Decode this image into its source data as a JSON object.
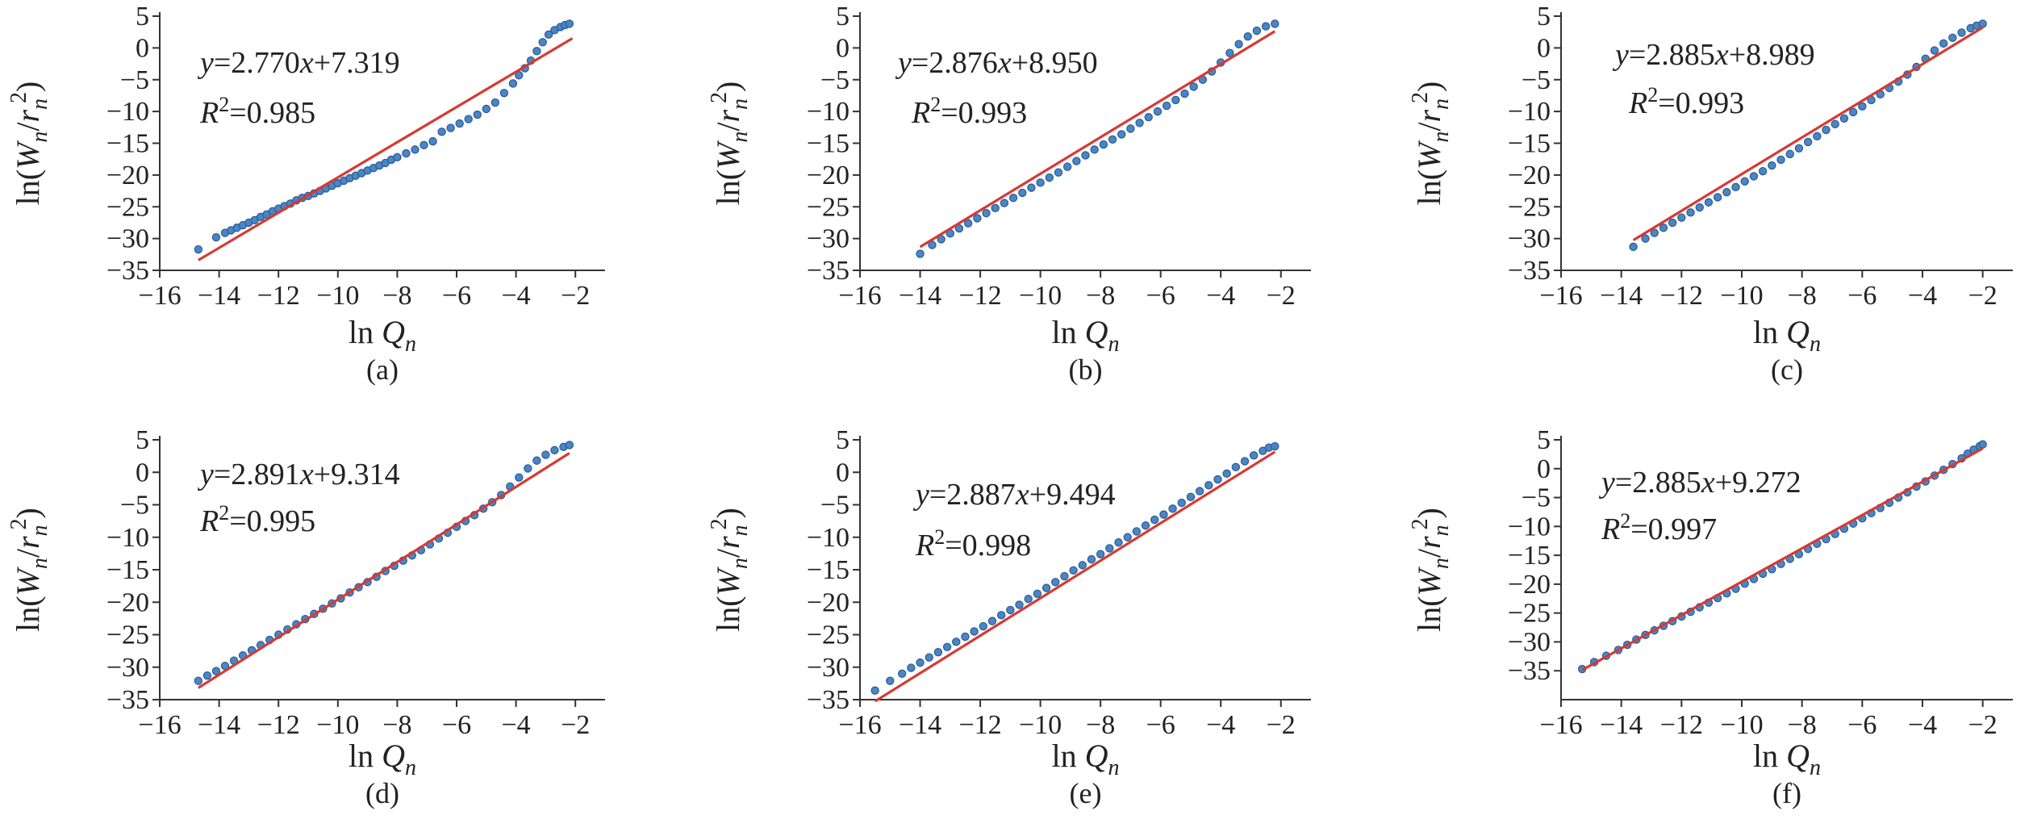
{
  "figure": {
    "marker_color": "#4a86c5",
    "marker_edge": "#2a5b93",
    "fit_color": "#d63a33",
    "axis_color": "#333333"
  },
  "chart_data": [
    {
      "type": "scatter",
      "label": "(a)",
      "xlabel": "ln Q_n",
      "ylabel": "ln(W_n/r_n^2)",
      "xlim": [
        -16,
        -1
      ],
      "ylim": [
        -35,
        5
      ],
      "xticks": [
        -16,
        -14,
        -12,
        -10,
        -8,
        -6,
        -4,
        -2
      ],
      "yticks": [
        5,
        0,
        -5,
        -10,
        -15,
        -20,
        -25,
        -30,
        -35
      ],
      "equation": {
        "slope": "2.770",
        "intercept": "7.319",
        "r2": "0.985"
      },
      "fit": {
        "slope": 2.77,
        "intercept": 7.319,
        "x_range": [
          -14.7,
          -2.1
        ]
      },
      "points": [
        [
          -14.7,
          -31.7
        ],
        [
          -14.1,
          -29.8
        ],
        [
          -13.8,
          -29.1
        ],
        [
          -13.6,
          -28.7
        ],
        [
          -13.4,
          -28.3
        ],
        [
          -13.2,
          -27.9
        ],
        [
          -13.0,
          -27.5
        ],
        [
          -12.8,
          -27.1
        ],
        [
          -12.6,
          -26.6
        ],
        [
          -12.4,
          -26.2
        ],
        [
          -12.2,
          -25.7
        ],
        [
          -12.0,
          -25.3
        ],
        [
          -11.8,
          -24.9
        ],
        [
          -11.6,
          -24.5
        ],
        [
          -11.4,
          -24.0
        ],
        [
          -11.2,
          -23.6
        ],
        [
          -11.0,
          -23.3
        ],
        [
          -10.8,
          -22.9
        ],
        [
          -10.6,
          -22.5
        ],
        [
          -10.4,
          -22.1
        ],
        [
          -10.2,
          -21.7
        ],
        [
          -10.0,
          -21.3
        ],
        [
          -9.8,
          -20.9
        ],
        [
          -9.6,
          -20.5
        ],
        [
          -9.4,
          -20.1
        ],
        [
          -9.2,
          -19.7
        ],
        [
          -9.0,
          -19.3
        ],
        [
          -8.8,
          -18.9
        ],
        [
          -8.6,
          -18.5
        ],
        [
          -8.4,
          -18.1
        ],
        [
          -8.2,
          -17.6
        ],
        [
          -8.0,
          -17.2
        ],
        [
          -7.7,
          -16.6
        ],
        [
          -7.4,
          -16.0
        ],
        [
          -7.1,
          -15.3
        ],
        [
          -6.8,
          -14.7
        ],
        [
          -6.5,
          -13.2
        ],
        [
          -6.2,
          -12.6
        ],
        [
          -5.9,
          -11.9
        ],
        [
          -5.6,
          -11.2
        ],
        [
          -5.3,
          -10.5
        ],
        [
          -5.0,
          -9.6
        ],
        [
          -4.7,
          -8.6
        ],
        [
          -4.4,
          -7.1
        ],
        [
          -4.1,
          -5.6
        ],
        [
          -3.9,
          -4.3
        ],
        [
          -3.7,
          -3.2
        ],
        [
          -3.5,
          -2.0
        ],
        [
          -3.3,
          -0.5
        ],
        [
          -3.1,
          0.9
        ],
        [
          -2.9,
          2.1
        ],
        [
          -2.7,
          2.8
        ],
        [
          -2.5,
          3.3
        ],
        [
          -2.35,
          3.6
        ],
        [
          -2.2,
          3.8
        ]
      ]
    },
    {
      "type": "scatter",
      "label": "(b)",
      "xlabel": "ln Q_n",
      "ylabel": "ln(W_n/r_n^2)",
      "xlim": [
        -16,
        -1
      ],
      "ylim": [
        -35,
        5
      ],
      "xticks": [
        -16,
        -14,
        -12,
        -10,
        -8,
        -6,
        -4,
        -2
      ],
      "yticks": [
        5,
        0,
        -5,
        -10,
        -15,
        -20,
        -25,
        -30,
        -35
      ],
      "equation": {
        "slope": "2.876",
        "intercept": "8.950",
        "r2": "0.993"
      },
      "fit": {
        "slope": 2.876,
        "intercept": 8.95,
        "x_range": [
          -14.0,
          -2.2
        ]
      },
      "points": [
        [
          -14.0,
          -32.4
        ],
        [
          -13.6,
          -31.0
        ],
        [
          -13.3,
          -30.1
        ],
        [
          -13.0,
          -29.2
        ],
        [
          -12.7,
          -28.4
        ],
        [
          -12.4,
          -27.6
        ],
        [
          -12.1,
          -26.8
        ],
        [
          -11.8,
          -26.0
        ],
        [
          -11.5,
          -25.2
        ],
        [
          -11.2,
          -24.4
        ],
        [
          -10.9,
          -23.6
        ],
        [
          -10.6,
          -22.8
        ],
        [
          -10.3,
          -22.0
        ],
        [
          -10.0,
          -21.2
        ],
        [
          -9.7,
          -20.4
        ],
        [
          -9.4,
          -19.6
        ],
        [
          -9.1,
          -18.7
        ],
        [
          -8.8,
          -17.8
        ],
        [
          -8.5,
          -16.9
        ],
        [
          -8.2,
          -16.0
        ],
        [
          -7.9,
          -15.2
        ],
        [
          -7.6,
          -14.4
        ],
        [
          -7.3,
          -13.6
        ],
        [
          -7.0,
          -12.7
        ],
        [
          -6.7,
          -11.8
        ],
        [
          -6.4,
          -10.9
        ],
        [
          -6.1,
          -10.0
        ],
        [
          -5.8,
          -9.1
        ],
        [
          -5.5,
          -8.2
        ],
        [
          -5.2,
          -7.2
        ],
        [
          -4.9,
          -6.1
        ],
        [
          -4.6,
          -5.0
        ],
        [
          -4.3,
          -3.7
        ],
        [
          -4.0,
          -2.3
        ],
        [
          -3.7,
          -0.8
        ],
        [
          -3.4,
          0.6
        ],
        [
          -3.1,
          1.8
        ],
        [
          -2.8,
          2.7
        ],
        [
          -2.5,
          3.4
        ],
        [
          -2.2,
          3.8
        ]
      ]
    },
    {
      "type": "scatter",
      "label": "(c)",
      "xlabel": "ln Q_n",
      "ylabel": "ln(W_n/r_n^2)",
      "xlim": [
        -16,
        -1
      ],
      "ylim": [
        -35,
        5
      ],
      "xticks": [
        -16,
        -14,
        -12,
        -10,
        -8,
        -6,
        -4,
        -2
      ],
      "yticks": [
        5,
        0,
        -5,
        -10,
        -15,
        -20,
        -25,
        -30,
        -35
      ],
      "equation": {
        "slope": "2.885",
        "intercept": "8.989",
        "r2": "0.993"
      },
      "fit": {
        "slope": 2.885,
        "intercept": 8.989,
        "x_range": [
          -13.6,
          -2.0
        ]
      },
      "points": [
        [
          -13.6,
          -31.3
        ],
        [
          -13.2,
          -30.0
        ],
        [
          -12.9,
          -29.1
        ],
        [
          -12.6,
          -28.3
        ],
        [
          -12.3,
          -27.5
        ],
        [
          -12.0,
          -26.7
        ],
        [
          -11.7,
          -25.9
        ],
        [
          -11.4,
          -25.1
        ],
        [
          -11.1,
          -24.3
        ],
        [
          -10.8,
          -23.5
        ],
        [
          -10.5,
          -22.7
        ],
        [
          -10.2,
          -21.9
        ],
        [
          -9.9,
          -21.0
        ],
        [
          -9.6,
          -20.2
        ],
        [
          -9.3,
          -19.4
        ],
        [
          -9.0,
          -18.5
        ],
        [
          -8.7,
          -17.6
        ],
        [
          -8.4,
          -16.7
        ],
        [
          -8.1,
          -15.8
        ],
        [
          -7.8,
          -14.8
        ],
        [
          -7.5,
          -13.9
        ],
        [
          -7.2,
          -12.9
        ],
        [
          -6.9,
          -12.0
        ],
        [
          -6.6,
          -11.1
        ],
        [
          -6.3,
          -10.1
        ],
        [
          -6.0,
          -9.2
        ],
        [
          -5.7,
          -8.2
        ],
        [
          -5.4,
          -7.3
        ],
        [
          -5.1,
          -6.3
        ],
        [
          -4.8,
          -5.3
        ],
        [
          -4.5,
          -4.2
        ],
        [
          -4.2,
          -3.0
        ],
        [
          -3.9,
          -1.7
        ],
        [
          -3.6,
          -0.4
        ],
        [
          -3.3,
          0.7
        ],
        [
          -3.0,
          1.6
        ],
        [
          -2.7,
          2.4
        ],
        [
          -2.4,
          3.1
        ],
        [
          -2.2,
          3.5
        ],
        [
          -2.0,
          3.8
        ]
      ]
    },
    {
      "type": "scatter",
      "label": "(d)",
      "xlabel": "ln Q_n",
      "ylabel": "ln(W_n/r_n^2)",
      "xlim": [
        -16,
        -1
      ],
      "ylim": [
        -35,
        5
      ],
      "xticks": [
        -16,
        -14,
        -12,
        -10,
        -8,
        -6,
        -4,
        -2
      ],
      "yticks": [
        5,
        0,
        -5,
        -10,
        -15,
        -20,
        -25,
        -30,
        -35
      ],
      "equation": {
        "slope": "2.891",
        "intercept": "9.314",
        "r2": "0.995"
      },
      "fit": {
        "slope": 2.891,
        "intercept": 9.314,
        "x_range": [
          -14.7,
          -2.2
        ]
      },
      "points": [
        [
          -14.7,
          -32.1
        ],
        [
          -14.4,
          -31.3
        ],
        [
          -14.1,
          -30.6
        ],
        [
          -13.8,
          -29.8
        ],
        [
          -13.5,
          -29.0
        ],
        [
          -13.2,
          -28.2
        ],
        [
          -12.9,
          -27.4
        ],
        [
          -12.6,
          -26.6
        ],
        [
          -12.3,
          -25.8
        ],
        [
          -12.0,
          -25.0
        ],
        [
          -11.7,
          -24.2
        ],
        [
          -11.4,
          -23.4
        ],
        [
          -11.1,
          -22.6
        ],
        [
          -10.8,
          -21.8
        ],
        [
          -10.5,
          -21.0
        ],
        [
          -10.2,
          -20.2
        ],
        [
          -9.9,
          -19.4
        ],
        [
          -9.6,
          -18.5
        ],
        [
          -9.3,
          -17.7
        ],
        [
          -9.0,
          -16.9
        ],
        [
          -8.7,
          -16.1
        ],
        [
          -8.4,
          -15.2
        ],
        [
          -8.1,
          -14.4
        ],
        [
          -7.8,
          -13.6
        ],
        [
          -7.5,
          -12.8
        ],
        [
          -7.2,
          -12.0
        ],
        [
          -6.9,
          -11.1
        ],
        [
          -6.6,
          -10.2
        ],
        [
          -6.3,
          -9.3
        ],
        [
          -6.0,
          -8.4
        ],
        [
          -5.7,
          -7.5
        ],
        [
          -5.4,
          -6.6
        ],
        [
          -5.1,
          -5.6
        ],
        [
          -4.8,
          -4.6
        ],
        [
          -4.5,
          -3.5
        ],
        [
          -4.2,
          -2.2
        ],
        [
          -3.9,
          -0.8
        ],
        [
          -3.6,
          0.6
        ],
        [
          -3.3,
          1.8
        ],
        [
          -3.0,
          2.7
        ],
        [
          -2.7,
          3.4
        ],
        [
          -2.4,
          3.9
        ],
        [
          -2.2,
          4.2
        ]
      ]
    },
    {
      "type": "scatter",
      "label": "(e)",
      "xlabel": "ln Q_n",
      "ylabel": "ln(W_n/r_n^2)",
      "xlim": [
        -16,
        -1
      ],
      "ylim": [
        -35,
        5
      ],
      "xticks": [
        -16,
        -14,
        -12,
        -10,
        -8,
        -6,
        -4,
        -2
      ],
      "yticks": [
        5,
        0,
        -5,
        -10,
        -15,
        -20,
        -25,
        -30,
        -35
      ],
      "equation": {
        "slope": "2.887",
        "intercept": "9.494",
        "r2": "0.998"
      },
      "fit": {
        "slope": 2.887,
        "intercept": 9.494,
        "x_range": [
          -15.5,
          -2.2
        ]
      },
      "points": [
        [
          -15.5,
          -33.6
        ],
        [
          -15.0,
          -32.1
        ],
        [
          -14.6,
          -31.0
        ],
        [
          -14.3,
          -30.1
        ],
        [
          -14.0,
          -29.3
        ],
        [
          -13.7,
          -28.5
        ],
        [
          -13.4,
          -27.7
        ],
        [
          -13.1,
          -26.9
        ],
        [
          -12.8,
          -26.1
        ],
        [
          -12.5,
          -25.3
        ],
        [
          -12.2,
          -24.5
        ],
        [
          -11.9,
          -23.7
        ],
        [
          -11.6,
          -22.9
        ],
        [
          -11.3,
          -22.0
        ],
        [
          -11.0,
          -21.2
        ],
        [
          -10.7,
          -20.4
        ],
        [
          -10.4,
          -19.5
        ],
        [
          -10.1,
          -18.7
        ],
        [
          -9.8,
          -17.8
        ],
        [
          -9.5,
          -16.9
        ],
        [
          -9.2,
          -16.0
        ],
        [
          -8.9,
          -15.1
        ],
        [
          -8.6,
          -14.3
        ],
        [
          -8.3,
          -13.4
        ],
        [
          -8.0,
          -12.6
        ],
        [
          -7.7,
          -11.7
        ],
        [
          -7.4,
          -10.8
        ],
        [
          -7.1,
          -10.0
        ],
        [
          -6.8,
          -9.1
        ],
        [
          -6.5,
          -8.2
        ],
        [
          -6.2,
          -7.3
        ],
        [
          -5.9,
          -6.5
        ],
        [
          -5.6,
          -5.6
        ],
        [
          -5.3,
          -4.7
        ],
        [
          -5.0,
          -3.8
        ],
        [
          -4.7,
          -2.9
        ],
        [
          -4.4,
          -2.0
        ],
        [
          -4.1,
          -1.1
        ],
        [
          -3.8,
          -0.2
        ],
        [
          -3.5,
          0.8
        ],
        [
          -3.2,
          1.7
        ],
        [
          -2.9,
          2.6
        ],
        [
          -2.6,
          3.3
        ],
        [
          -2.4,
          3.8
        ],
        [
          -2.2,
          4.0
        ]
      ]
    },
    {
      "type": "scatter",
      "label": "(f)",
      "xlabel": "ln Q_n",
      "ylabel": "ln(W_n/r_n^2)",
      "xlim": [
        -16,
        -1
      ],
      "ylim": [
        -40,
        5
      ],
      "xticks": [
        -16,
        -14,
        -12,
        -10,
        -8,
        -6,
        -4,
        -2
      ],
      "yticks": [
        5,
        0,
        -5,
        -10,
        -15,
        -20,
        -25,
        -30,
        -35
      ],
      "equation": {
        "slope": "2.885",
        "intercept": "9.272",
        "r2": "0.997"
      },
      "fit": {
        "slope": 2.885,
        "intercept": 9.272,
        "x_range": [
          -15.3,
          -2.0
        ]
      },
      "points": [
        [
          -15.3,
          -34.7
        ],
        [
          -14.9,
          -33.5
        ],
        [
          -14.5,
          -32.4
        ],
        [
          -14.1,
          -31.4
        ],
        [
          -13.8,
          -30.5
        ],
        [
          -13.5,
          -29.6
        ],
        [
          -13.2,
          -28.8
        ],
        [
          -12.9,
          -28.0
        ],
        [
          -12.6,
          -27.2
        ],
        [
          -12.3,
          -26.4
        ],
        [
          -12.0,
          -25.6
        ],
        [
          -11.7,
          -24.8
        ],
        [
          -11.4,
          -24.0
        ],
        [
          -11.1,
          -23.2
        ],
        [
          -10.8,
          -22.4
        ],
        [
          -10.5,
          -21.6
        ],
        [
          -10.2,
          -20.8
        ],
        [
          -9.9,
          -19.9
        ],
        [
          -9.6,
          -19.1
        ],
        [
          -9.3,
          -18.2
        ],
        [
          -9.0,
          -17.4
        ],
        [
          -8.7,
          -16.5
        ],
        [
          -8.4,
          -15.6
        ],
        [
          -8.1,
          -14.8
        ],
        [
          -7.8,
          -13.9
        ],
        [
          -7.5,
          -13.0
        ],
        [
          -7.2,
          -12.2
        ],
        [
          -6.9,
          -11.3
        ],
        [
          -6.6,
          -10.4
        ],
        [
          -6.3,
          -9.5
        ],
        [
          -6.0,
          -8.6
        ],
        [
          -5.7,
          -7.7
        ],
        [
          -5.4,
          -6.8
        ],
        [
          -5.1,
          -5.9
        ],
        [
          -4.8,
          -5.0
        ],
        [
          -4.5,
          -4.1
        ],
        [
          -4.2,
          -3.1
        ],
        [
          -3.9,
          -2.2
        ],
        [
          -3.6,
          -1.2
        ],
        [
          -3.3,
          -0.2
        ],
        [
          -3.0,
          0.8
        ],
        [
          -2.7,
          1.8
        ],
        [
          -2.5,
          2.6
        ],
        [
          -2.3,
          3.3
        ],
        [
          -2.1,
          3.9
        ],
        [
          -2.0,
          4.2
        ]
      ]
    }
  ]
}
